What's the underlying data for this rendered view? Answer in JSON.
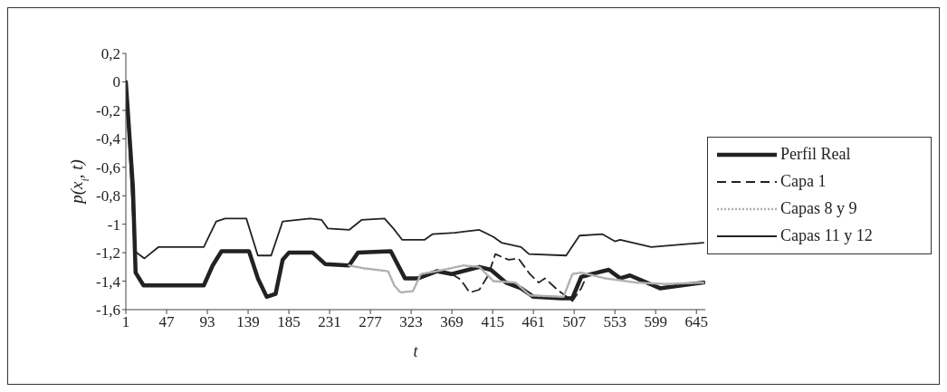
{
  "chart_data": {
    "type": "line",
    "xlabel": "t",
    "ylabel": "p(x$_{i}$, t)",
    "xlim": [
      1,
      655
    ],
    "xticks": [
      1,
      47,
      93,
      139,
      185,
      231,
      277,
      323,
      369,
      415,
      461,
      507,
      553,
      599,
      645
    ],
    "ylim": [
      -1.6,
      0.2
    ],
    "yticks": [
      {
        "value": -1.6,
        "label": "-1,6"
      },
      {
        "value": -1.4,
        "label": "-1,4"
      },
      {
        "value": -1.2,
        "label": "-1,2"
      },
      {
        "value": -1,
        "label": "-1"
      },
      {
        "value": -0.8,
        "label": "-0,8"
      },
      {
        "value": -0.6,
        "label": "-0,6"
      },
      {
        "value": -0.4,
        "label": "-0,4"
      },
      {
        "value": -0.2,
        "label": "-0,2"
      },
      {
        "value": 0,
        "label": "0"
      },
      {
        "value": 0.2,
        "label": "0,2"
      }
    ],
    "grid": false,
    "legend": "right",
    "marker": "none",
    "series": [
      {
        "name": "Perfil Real",
        "color": "#222222",
        "line_style": "solid",
        "x": [
          1,
          9,
          12,
          21,
          89,
          99,
          109,
          140,
          150,
          160,
          170,
          178,
          185,
          212,
          226,
          253,
          263,
          300,
          316,
          331,
          352,
          369,
          400,
          413,
          430,
          447,
          461,
          492,
          505,
          515,
          533,
          546,
          559,
          570,
          604,
          653
        ],
        "values": [
          0,
          -0.74,
          -1.34,
          -1.43,
          -1.43,
          -1.29,
          -1.19,
          -1.19,
          -1.38,
          -1.51,
          -1.49,
          -1.25,
          -1.2,
          -1.2,
          -1.28,
          -1.29,
          -1.2,
          -1.19,
          -1.38,
          -1.38,
          -1.33,
          -1.35,
          -1.3,
          -1.32,
          -1.41,
          -1.45,
          -1.51,
          -1.52,
          -1.52,
          -1.37,
          -1.34,
          -1.32,
          -1.38,
          -1.36,
          -1.45,
          -1.41
        ]
      },
      {
        "name": "Capa 1",
        "color": "#222222",
        "line_style": "dashed",
        "x": [
          369,
          379,
          389,
          400,
          410,
          418,
          433,
          444,
          457,
          467,
          474,
          488,
          505,
          515,
          522,
          542,
          553
        ],
        "values": [
          -1.35,
          -1.39,
          -1.48,
          -1.46,
          -1.36,
          -1.21,
          -1.25,
          -1.24,
          -1.35,
          -1.41,
          -1.38,
          -1.46,
          -1.54,
          -1.45,
          -1.35,
          -1.32,
          -1.36
        ]
      },
      {
        "name": "Capas 8 y 9",
        "color": "#b0b0b0",
        "line_style": "dotted",
        "x": [
          253,
          270,
          297,
          304,
          311,
          325,
          334,
          352,
          382,
          400,
          416,
          441,
          457,
          495,
          505,
          515,
          542,
          577,
          610,
          653
        ],
        "values": [
          -1.29,
          -1.31,
          -1.33,
          -1.43,
          -1.48,
          -1.47,
          -1.35,
          -1.33,
          -1.29,
          -1.3,
          -1.4,
          -1.41,
          -1.5,
          -1.51,
          -1.35,
          -1.34,
          -1.38,
          -1.41,
          -1.42,
          -1.41
        ]
      },
      {
        "name": "Capas 11 y 12",
        "color": "#222222",
        "line_style": "solid",
        "x": [
          1,
          11,
          22,
          38,
          89,
          103,
          113,
          137,
          150,
          165,
          178,
          209,
          222,
          229,
          253,
          267,
          293,
          303,
          313,
          338,
          347,
          372,
          400,
          416,
          425,
          447,
          456,
          498,
          513,
          539,
          553,
          559,
          594,
          653
        ],
        "values": [
          0,
          -1.19,
          -1.24,
          -1.16,
          -1.16,
          -0.98,
          -0.96,
          -0.96,
          -1.22,
          -1.22,
          -0.98,
          -0.96,
          -0.97,
          -1.03,
          -1.04,
          -0.97,
          -0.96,
          -1.03,
          -1.11,
          -1.11,
          -1.07,
          -1.06,
          -1.04,
          -1.09,
          -1.13,
          -1.16,
          -1.21,
          -1.22,
          -1.08,
          -1.07,
          -1.12,
          -1.11,
          -1.16,
          -1.13
        ]
      }
    ]
  }
}
